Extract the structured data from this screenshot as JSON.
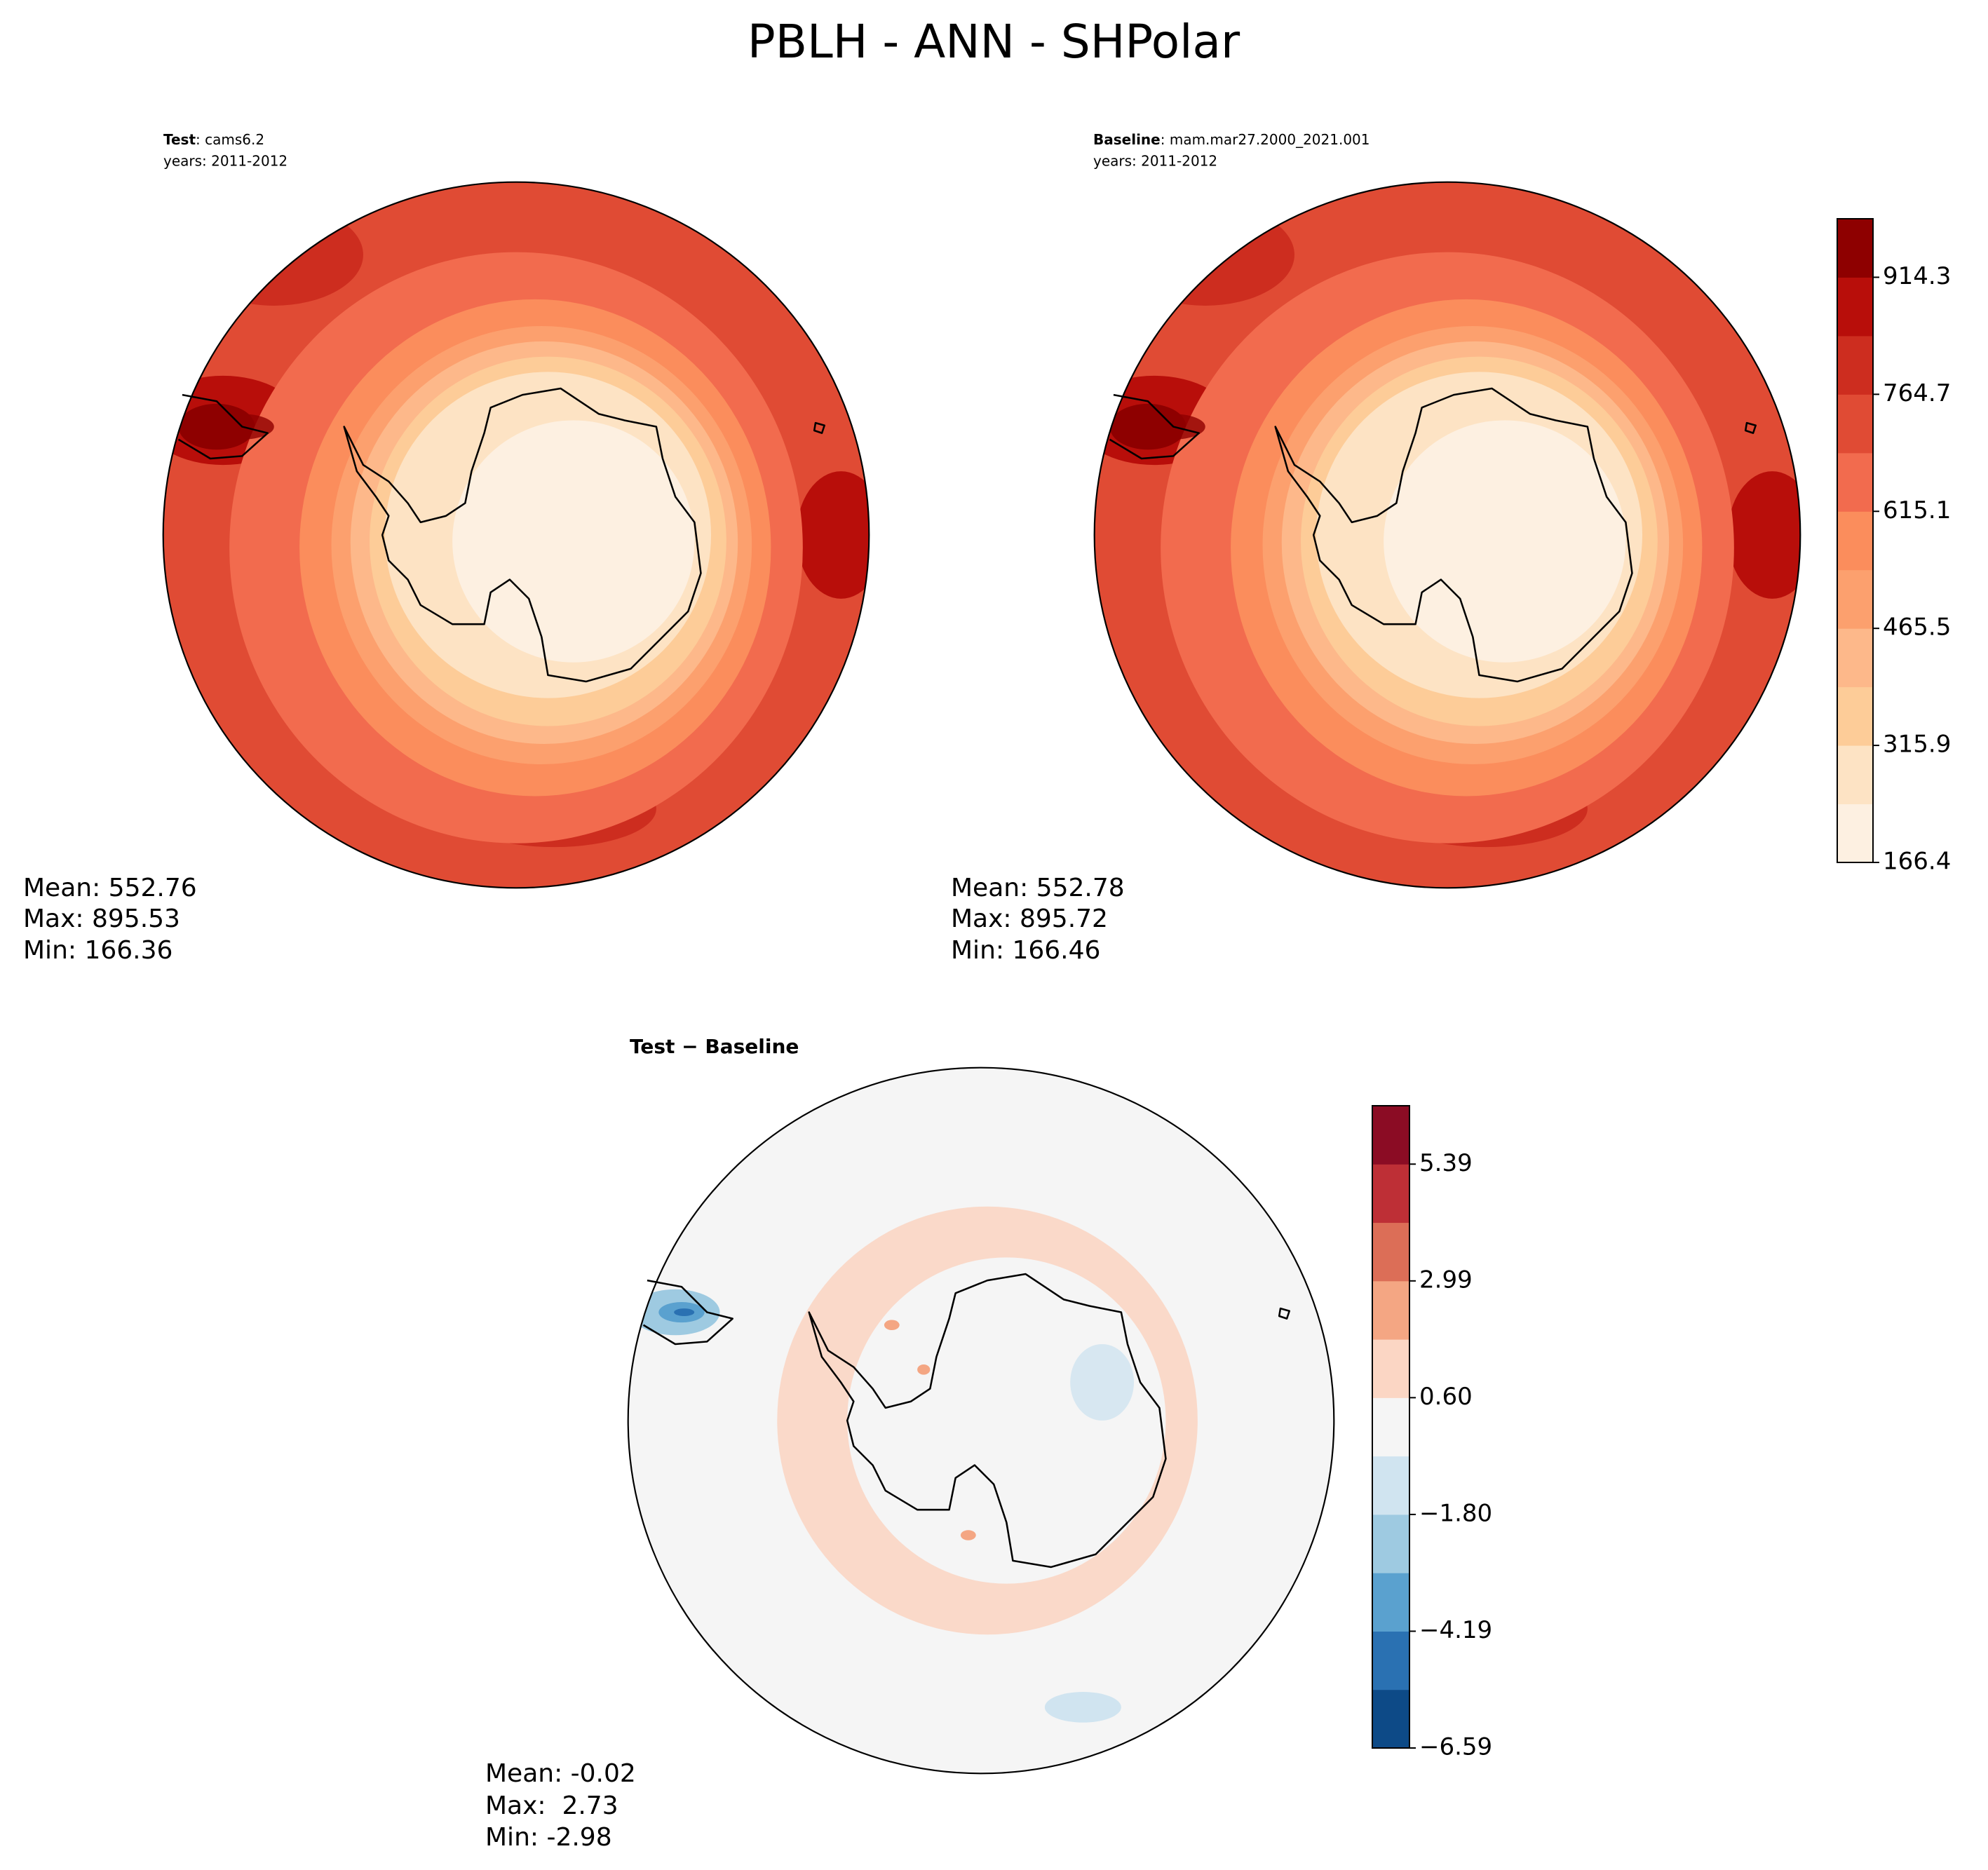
{
  "title": "PBLH - ANN - SHPolar",
  "panels": [
    {
      "label": "Test",
      "name": ": cams6.2",
      "years": "years: 2011-2012",
      "stats": [
        "Mean: 552.76",
        "Max: 895.53",
        "Min: 166.36"
      ]
    },
    {
      "label": "Baseline",
      "name": ": mam.mar27.2000_2021.001",
      "years": "years: 2011-2012",
      "stats": [
        "Mean: 552.78",
        "Max: 895.72",
        "Min: 166.46"
      ]
    },
    {
      "label": "Test − Baseline",
      "stats": [
        "Mean: -0.02",
        "Max:  2.73",
        "Min: -2.98"
      ]
    }
  ],
  "colorbars": [
    {
      "ticks": [
        "914.3",
        "764.7",
        "615.1",
        "465.5",
        "315.9",
        "166.4"
      ],
      "colors": [
        "#fdf0e1",
        "#fde3c4",
        "#fdcc98",
        "#fdb88a",
        "#fca06e",
        "#fb8d5c",
        "#f26b4e",
        "#e04b34",
        "#cd2d1f",
        "#b80e0a",
        "#8e0000"
      ]
    },
    {
      "ticks": [
        "5.39",
        "2.99",
        "0.60",
        "−1.80",
        "−4.19",
        "−6.59"
      ],
      "colors": [
        "#0d4a87",
        "#2a71b2",
        "#5aa1cf",
        "#9ecae1",
        "#d0e4f0",
        "#f5f5f5",
        "#fbd6c4",
        "#f4a683",
        "#dc6e57",
        "#be2f36",
        "#8b0c24"
      ]
    }
  ]
}
